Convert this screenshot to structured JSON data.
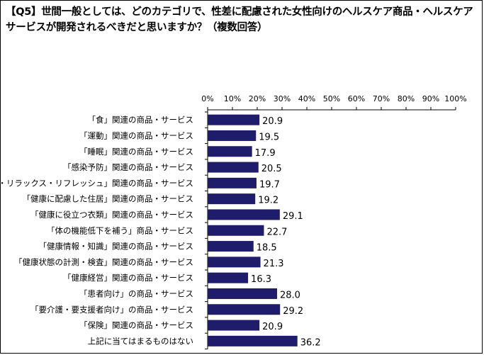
{
  "title": "【Q5】世間一般としては、どのカテゴリで、性差に配慮された女性向けのヘルスケア商品・ヘルスケアサービスが開発されるべきだと思いますか？（複数回答）",
  "chart_data": {
    "type": "bar",
    "orientation": "horizontal",
    "xlim": [
      0,
      100
    ],
    "ticks": [
      "0%",
      "10%",
      "20%",
      "30%",
      "40%",
      "50%",
      "60%",
      "70%",
      "80%",
      "90%",
      "100%"
    ],
    "bar_color": "#1f1c6b",
    "grid": false,
    "categories": [
      "「食」関連の商品・サービス",
      "「運動」関連の商品・サービス",
      "「睡眠」関連の商品・サービス",
      "「感染予防」関連の商品・サービス",
      "「癒し・リラックス・リフレッシュ」関連の商品・サービス",
      "「健康に配慮した住居」関連の商品・サービス",
      "「健康に役立つ衣類」関連の商品・サービス",
      "「体の機能低下を補う」商品・サービス",
      "「健康情報・知識」関連の商品・サービス",
      "「健康状態の計測・検査」関連の商品・サービス",
      "「健康経営」関連の商品・サービス",
      "「患者向け」の商品・サービス",
      "「要介護・要支援者向け」の商品・サービス",
      "「保険」関連の商品・サービス",
      "上記に当てはまるものはない"
    ],
    "values": [
      20.9,
      19.5,
      17.9,
      20.5,
      19.7,
      19.2,
      29.1,
      22.7,
      18.5,
      21.3,
      16.3,
      28.0,
      29.2,
      20.9,
      36.2
    ],
    "labels": [
      "20.9",
      "19.5",
      "17.9",
      "20.5",
      "19.7",
      "19.2",
      "29.1",
      "22.7",
      "18.5",
      "21.3",
      "16.3",
      "28.0",
      "29.2",
      "20.9",
      "36.2"
    ]
  }
}
